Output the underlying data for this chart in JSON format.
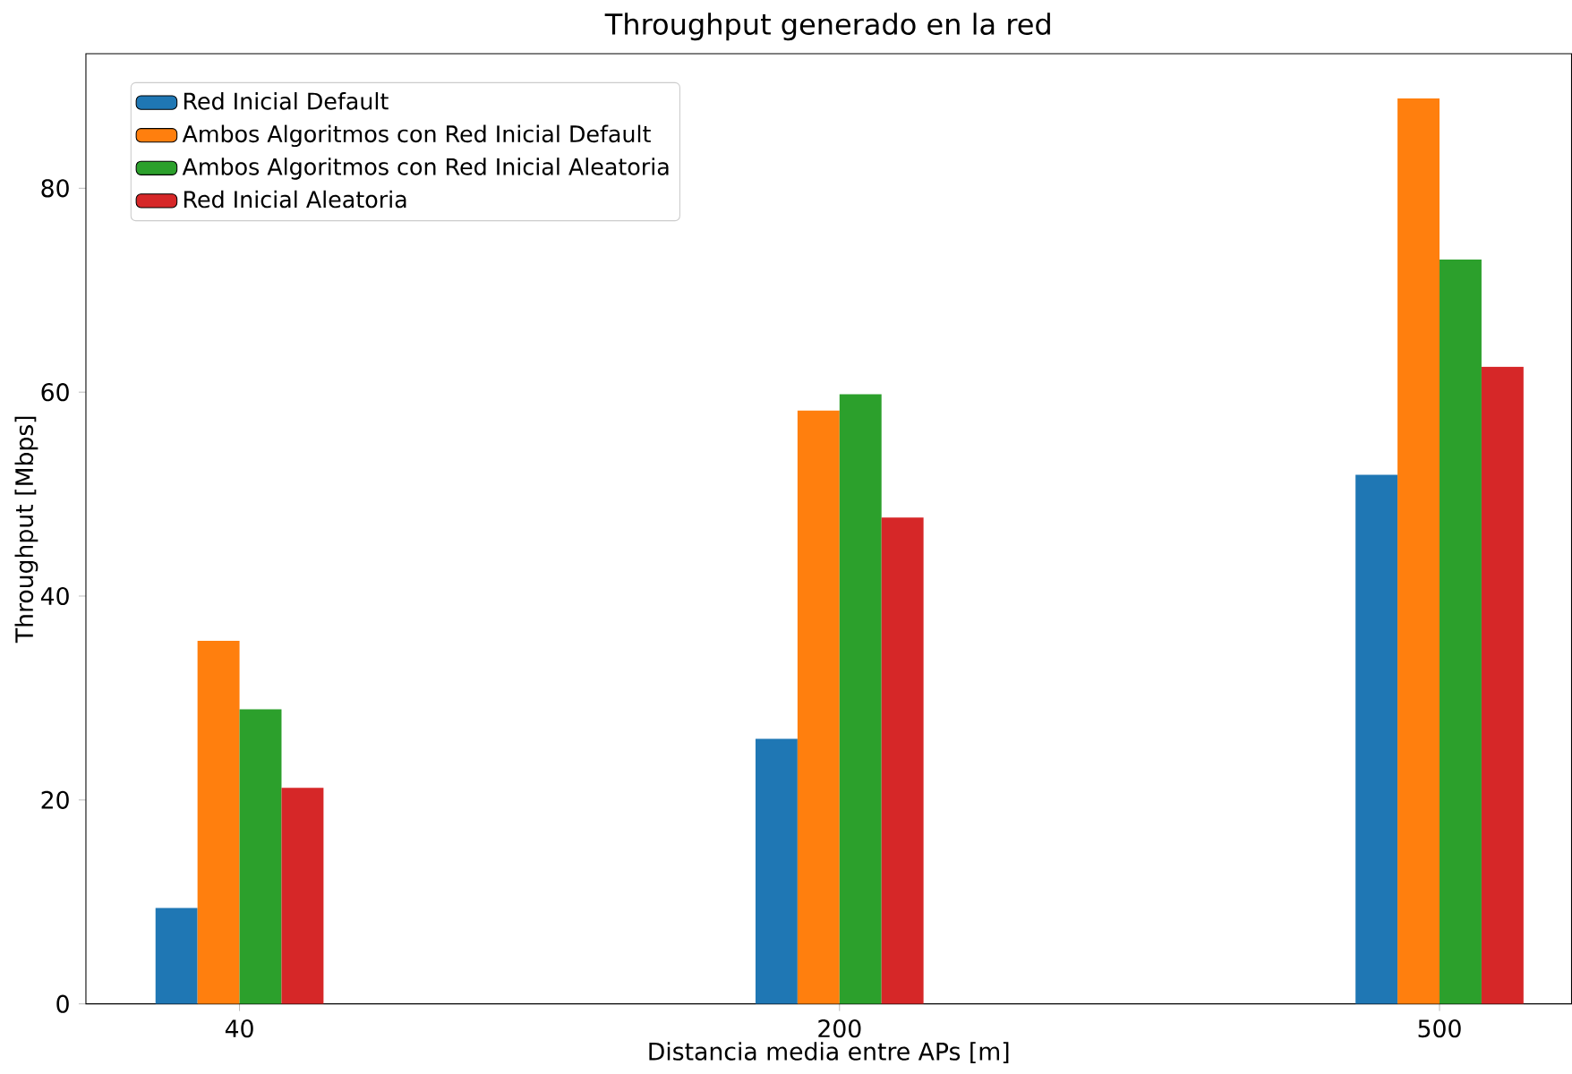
{
  "chart_data": {
    "type": "bar",
    "title": "Throughput generado en la red",
    "xlabel": "Distancia media entre APs [m]",
    "ylabel": "Throughput [Mbps]",
    "categories": [
      "40",
      "200",
      "500"
    ],
    "series": [
      {
        "name": "Red Inicial Default",
        "color": "#1f77b4",
        "values": [
          9.4,
          26.0,
          51.9
        ]
      },
      {
        "name": "Ambos Algoritmos con Red Inicial Default",
        "color": "#ff7f0e",
        "values": [
          35.6,
          58.2,
          88.8
        ]
      },
      {
        "name": "Ambos Algoritmos con Red Inicial Aleatoria",
        "color": "#2ca02c",
        "values": [
          28.9,
          59.8,
          73.0
        ]
      },
      {
        "name": "Red Inicial Aleatoria",
        "color": "#d62728",
        "values": [
          21.2,
          47.7,
          62.5
        ]
      }
    ],
    "ylim": [
      0,
      93.2
    ],
    "yticks": [
      0,
      20,
      40,
      60,
      80
    ],
    "legend": "top left",
    "grid": false
  }
}
